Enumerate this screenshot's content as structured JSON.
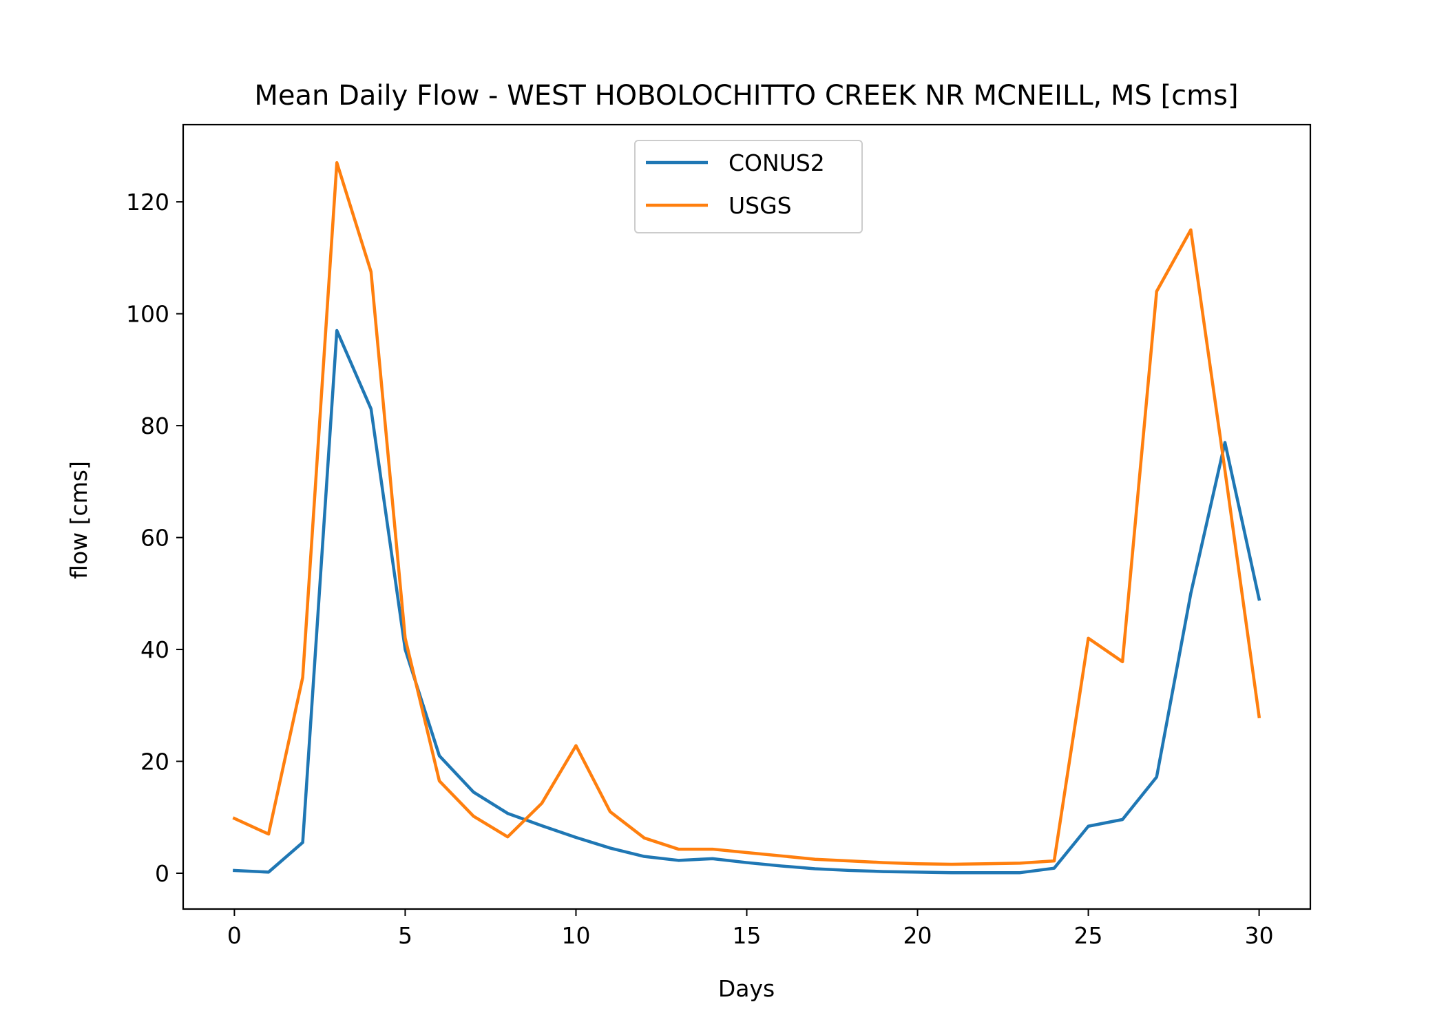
{
  "chart_data": {
    "type": "line",
    "title": "Mean Daily Flow - WEST HOBOLOCHITTO CREEK NR MCNEILL, MS [cms]",
    "xlabel": "Days",
    "ylabel": "flow [cms]",
    "xlim": [
      -1.5,
      31.5
    ],
    "ylim": [
      -6.4,
      133.8
    ],
    "xticks": [
      0,
      5,
      10,
      15,
      20,
      25,
      30
    ],
    "yticks": [
      0,
      20,
      40,
      60,
      80,
      100,
      120
    ],
    "grid": false,
    "legend_position": "upper center",
    "x": [
      0,
      1,
      2,
      3,
      4,
      5,
      6,
      7,
      8,
      9,
      10,
      11,
      12,
      13,
      14,
      15,
      16,
      17,
      18,
      19,
      20,
      21,
      22,
      23,
      24,
      25,
      26,
      27,
      28,
      29,
      30
    ],
    "series": [
      {
        "name": "CONUS2",
        "color": "#1f77b4",
        "values": [
          0.5,
          0.2,
          5.5,
          97.0,
          83.0,
          40.0,
          21.0,
          14.5,
          10.7,
          8.5,
          6.4,
          4.5,
          3.0,
          2.3,
          2.6,
          1.9,
          1.3,
          0.8,
          0.5,
          0.3,
          0.2,
          0.1,
          0.1,
          0.1,
          0.9,
          8.4,
          9.6,
          17.2,
          50.0,
          77.0,
          49.0
        ]
      },
      {
        "name": "USGS",
        "color": "#ff7f0e",
        "values": [
          9.8,
          7.0,
          35.0,
          127.0,
          107.5,
          42.0,
          16.5,
          10.2,
          6.5,
          12.5,
          22.8,
          11.0,
          6.3,
          4.3,
          4.3,
          3.7,
          3.1,
          2.5,
          2.2,
          1.9,
          1.7,
          1.6,
          1.7,
          1.8,
          2.2,
          42.0,
          37.8,
          104.0,
          115.0,
          72.0,
          28.0
        ]
      }
    ]
  }
}
